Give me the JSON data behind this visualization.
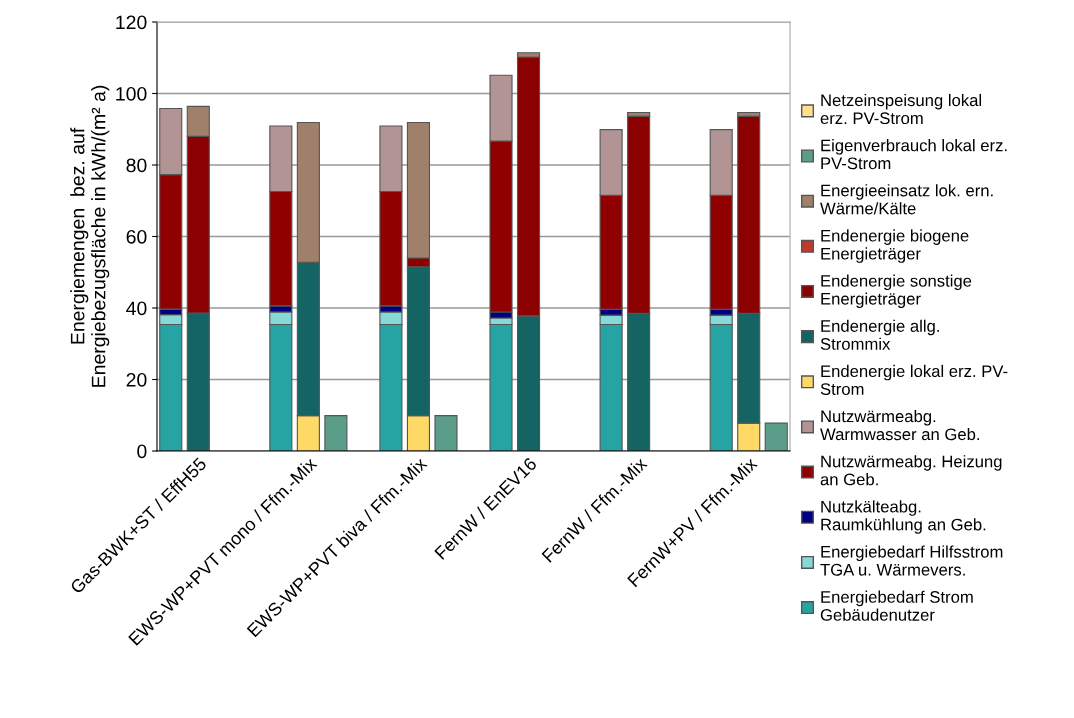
{
  "chart_data": {
    "type": "bar",
    "stacked": true,
    "ylabel": "Energiemengen  bez. auf\nEnergiebezugsfläche in kWh/(m² a)",
    "categories": [
      null,
      "Gas-BWK+ST / EffH55",
      null,
      null,
      null,
      "EWS-WP+PVT mono / Ffm.-Mix",
      null,
      null,
      null,
      "EWS-WP+PVT biva / Ffm.-Mix",
      null,
      null,
      null,
      "FernW / EnEV16",
      null,
      null,
      null,
      "FernW / Ffm.-Mix",
      null,
      null,
      null,
      "FernW+PV / Ffm.-Mix",
      null
    ],
    "ylim": [
      0,
      120
    ],
    "yticks": [
      0,
      20,
      40,
      60,
      80,
      100,
      120
    ],
    "grid": "y",
    "legend": "right",
    "series": [
      {
        "name": "Energiebedarf Strom\nGebäudenutzer",
        "color": "#26a3a3",
        "values": [
          35.4,
          null,
          null,
          null,
          35.4,
          null,
          null,
          null,
          35.4,
          null,
          null,
          null,
          35.4,
          null,
          null,
          null,
          35.4,
          null,
          null,
          null,
          35.4,
          null,
          null
        ]
      },
      {
        "name": "Energiebedarf Hilfsstrom\nTGA u. Wärmevers.",
        "color": "#88d8d8",
        "values": [
          2.7,
          null,
          null,
          null,
          3.5,
          null,
          null,
          null,
          3.5,
          null,
          null,
          null,
          1.8,
          null,
          null,
          null,
          2.6,
          null,
          null,
          null,
          2.6,
          null,
          null
        ]
      },
      {
        "name": "Nutzkälteabg.\nRaumkühlung an Geb.",
        "color": "#000080",
        "values": [
          1.6,
          null,
          null,
          null,
          1.7,
          null,
          null,
          null,
          1.7,
          null,
          null,
          null,
          1.7,
          null,
          null,
          null,
          1.6,
          null,
          null,
          null,
          1.6,
          null,
          null
        ]
      },
      {
        "name": "Nutzwärmeabg. Heizung\nan Geb.",
        "color": "#900000",
        "values": [
          37.6,
          null,
          null,
          null,
          32.0,
          null,
          null,
          null,
          32.0,
          null,
          null,
          null,
          47.8,
          null,
          null,
          null,
          31.9,
          null,
          null,
          null,
          31.9,
          null,
          null
        ]
      },
      {
        "name": "Nutzwärmeabg.\nWarmwasser an Geb.",
        "color": "#b39494",
        "values": [
          18.5,
          null,
          null,
          null,
          18.3,
          null,
          null,
          null,
          18.3,
          null,
          null,
          null,
          18.4,
          null,
          null,
          null,
          18.4,
          null,
          null,
          null,
          18.4,
          null,
          null
        ]
      },
      {
        "name": "Endenergie lokal erz. PV-\nStrom",
        "color": "#ffd966",
        "values": [
          null,
          null,
          null,
          null,
          null,
          9.9,
          null,
          null,
          null,
          9.9,
          null,
          null,
          null,
          null,
          null,
          null,
          null,
          null,
          null,
          null,
          null,
          7.8,
          null
        ]
      },
      {
        "name": "Endenergie allg.\nStrommix",
        "color": "#156464",
        "values": [
          null,
          38.6,
          null,
          null,
          null,
          42.9,
          null,
          null,
          null,
          41.6,
          null,
          null,
          null,
          37.8,
          null,
          null,
          null,
          38.5,
          null,
          null,
          null,
          30.7,
          null
        ]
      },
      {
        "name": "Endenergie sonstige\nEnergieträger",
        "color": "#8b0000",
        "values": [
          null,
          49.4,
          null,
          null,
          null,
          null,
          null,
          null,
          null,
          2.5,
          null,
          null,
          null,
          72.4,
          null,
          null,
          null,
          55.1,
          null,
          null,
          null,
          55.1,
          null
        ]
      },
      {
        "name": "Endenergie biogene\nEnergieträger",
        "color": "#c0392b",
        "values": [
          null,
          null,
          null,
          null,
          null,
          null,
          null,
          null,
          null,
          null,
          null,
          null,
          null,
          null,
          null,
          null,
          null,
          null,
          null,
          null,
          null,
          null,
          null
        ]
      },
      {
        "name": "Energieeinsatz lok. ern.\nWärme/Kälte",
        "color": "#a0806a",
        "values": [
          null,
          8.4,
          null,
          null,
          null,
          39.1,
          null,
          null,
          null,
          37.9,
          null,
          null,
          null,
          1.2,
          null,
          null,
          null,
          1.1,
          null,
          null,
          null,
          1.1,
          null
        ]
      },
      {
        "name": "Eigenverbrauch lokal erz.\nPV-Strom",
        "color": "#5a9e8a",
        "values": [
          null,
          null,
          null,
          null,
          null,
          null,
          9.9,
          null,
          null,
          null,
          9.9,
          null,
          null,
          null,
          null,
          null,
          null,
          null,
          null,
          null,
          null,
          null,
          7.8
        ]
      },
      {
        "name": "Netzeinspeisung lokal\nerz. PV-Strom",
        "color": "#ffe08a",
        "values": [
          null,
          null,
          null,
          null,
          null,
          null,
          null,
          null,
          null,
          null,
          null,
          null,
          null,
          null,
          null,
          null,
          null,
          null,
          null,
          null,
          null,
          null,
          null
        ]
      }
    ]
  }
}
